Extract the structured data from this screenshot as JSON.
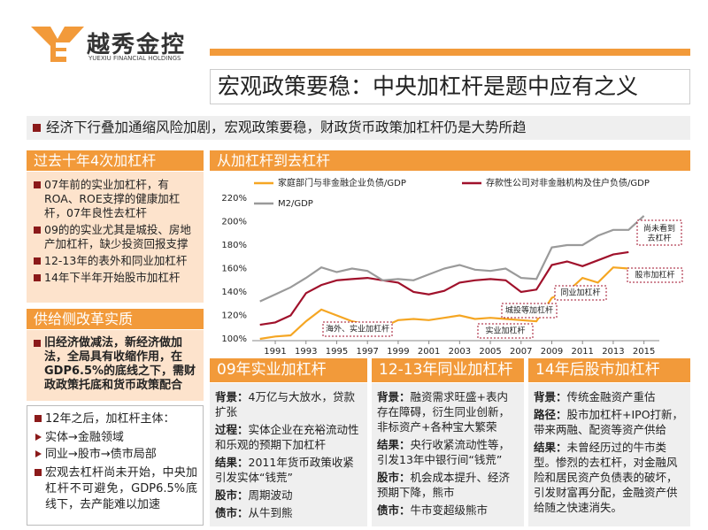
{
  "logo": {
    "name": "越秀金控",
    "subname": "YUEXIU FINANCIAL HOLDINGS"
  },
  "header": {
    "title": "宏观政策要稳：中央加杠杆是题中应有之义",
    "subtitle": "经济下行叠加通缩风险加剧，宏观政策要稳，财政货币政策加杠杆仍是大势所趋"
  },
  "left": {
    "history": {
      "title": "过去十年4次加杠杆",
      "items": [
        "07年前的实业加杠杆，有ROA、ROE支撑的健康加杠杆，07年良性去杠杆",
        "09的的实业尤其是城投、房地产加杠杆，缺少投资回报支撑",
        "12-13年的表外和同业加杠杆",
        "14年下半年开始股市加杠杆"
      ]
    },
    "reform": {
      "title": "供给侧改革实质",
      "text": "旧经济做减法，新经济做加法，全局具有收缩作用，在GDP6.5%的底线之下，需财政政策托底和货币政策配合"
    },
    "notes": {
      "intro": "12年之后，加杠杆主体：",
      "arrows": [
        "实体→金融领域",
        "同业→股市→债市局部"
      ],
      "last": "宏观去杠杆尚未开始，中央加杠杆不可避免，GDP6.5%底线下，去产能难以加速"
    }
  },
  "chart_data": {
    "type": "line",
    "title": "从加杠杆到去杠杆",
    "x": [
      1990,
      1991,
      1992,
      1993,
      1994,
      1995,
      1996,
      1997,
      1998,
      1999,
      2000,
      2001,
      2002,
      2003,
      2004,
      2005,
      2006,
      2007,
      2008,
      2009,
      2010,
      2011,
      2012,
      2013,
      2014,
      2015
    ],
    "series": [
      {
        "name": "家庭部门与非金融企业负债/GDP",
        "color": "#f5a623",
        "values": [
          100,
          102,
          103,
          115,
          125,
          120,
          115,
          112,
          110,
          116,
          117,
          116,
          118,
          120,
          117,
          118,
          117,
          116,
          115,
          135,
          140,
          152,
          148,
          161,
          160,
          null
        ]
      },
      {
        "name": "存款性公司对非金融机构及住户负债/GDP",
        "color": "#a0112b",
        "values": [
          112,
          114,
          120,
          139,
          146,
          150,
          151,
          152,
          150,
          148,
          140,
          138,
          141,
          148,
          150,
          151,
          150,
          140,
          142,
          163,
          166,
          162,
          167,
          172,
          174,
          null
        ]
      },
      {
        "name": "M2/GDP",
        "color": "#9a9a9a",
        "values": [
          132,
          138,
          144,
          152,
          161,
          157,
          160,
          158,
          150,
          151,
          150,
          155,
          160,
          163,
          159,
          158,
          160,
          152,
          151,
          178,
          180,
          180,
          188,
          193,
          193,
          205
        ]
      }
    ],
    "xlim": [
      1989.5,
      2016
    ],
    "xticks": [
      1991,
      1993,
      1995,
      1997,
      1999,
      2001,
      2003,
      2005,
      2007,
      2009,
      2011,
      2013,
      2015
    ],
    "ylim": [
      100,
      220
    ],
    "yticks": [
      {
        "value": 100,
        "label": "100%"
      },
      {
        "value": 120,
        "label": "120%"
      },
      {
        "value": 140,
        "label": "140%"
      },
      {
        "value": 160,
        "label": "160%"
      },
      {
        "value": 180,
        "label": "180%"
      },
      {
        "value": 200,
        "label": "200%"
      },
      {
        "value": 220,
        "label": "220%"
      }
    ],
    "grid": false,
    "annotations": [
      "尚未看到去杠杆",
      "股市加杠杆",
      "同业加杠杆",
      "城投等加杠杆",
      "实业加杠杆",
      "海外、实业加杠杆"
    ]
  },
  "panels": [
    {
      "title": "09年实业加杠杆",
      "items": [
        {
          "label": "背景：",
          "text": "4万亿与大放水，贷款扩张"
        },
        {
          "label": "过程：",
          "text": "实体企业在充裕流动性和乐观的预期下加杠杆"
        },
        {
          "label": "结果：",
          "text": "2011年货币政策收紧引发实体“钱荒”"
        },
        {
          "label": "股市：",
          "text": "周期波动"
        },
        {
          "label": "债市：",
          "text": "从牛到熊"
        }
      ]
    },
    {
      "title": "12-13年同业加杠杆",
      "items": [
        {
          "label": "背景：",
          "text": "融资需求旺盛+表内存在障碍，衍生同业创新，非标资产+各种宝大繁荣"
        },
        {
          "label": "结果：",
          "text": "央行收紧流动性等，引发13年中银行间“钱荒”"
        },
        {
          "label": "股市：",
          "text": "机会成本提升、经济预期下降，熊市"
        },
        {
          "label": "债市：",
          "text": "牛市变超级熊市"
        }
      ]
    },
    {
      "title": "14年后股市加杠杆",
      "items": [
        {
          "label": "背景：",
          "text": "传统金融资产重估"
        },
        {
          "label": "路径：",
          "text": "股市加杠杆+IPO打新，带来两融、配资等资产供给"
        },
        {
          "label": "结果：",
          "text": "未曾经历过的牛市类型。惨烈的去杠杆，对金融风险和居民资产负债表的破坏，引发财富再分配，金融资产供给随之快速消失。"
        }
      ]
    }
  ]
}
